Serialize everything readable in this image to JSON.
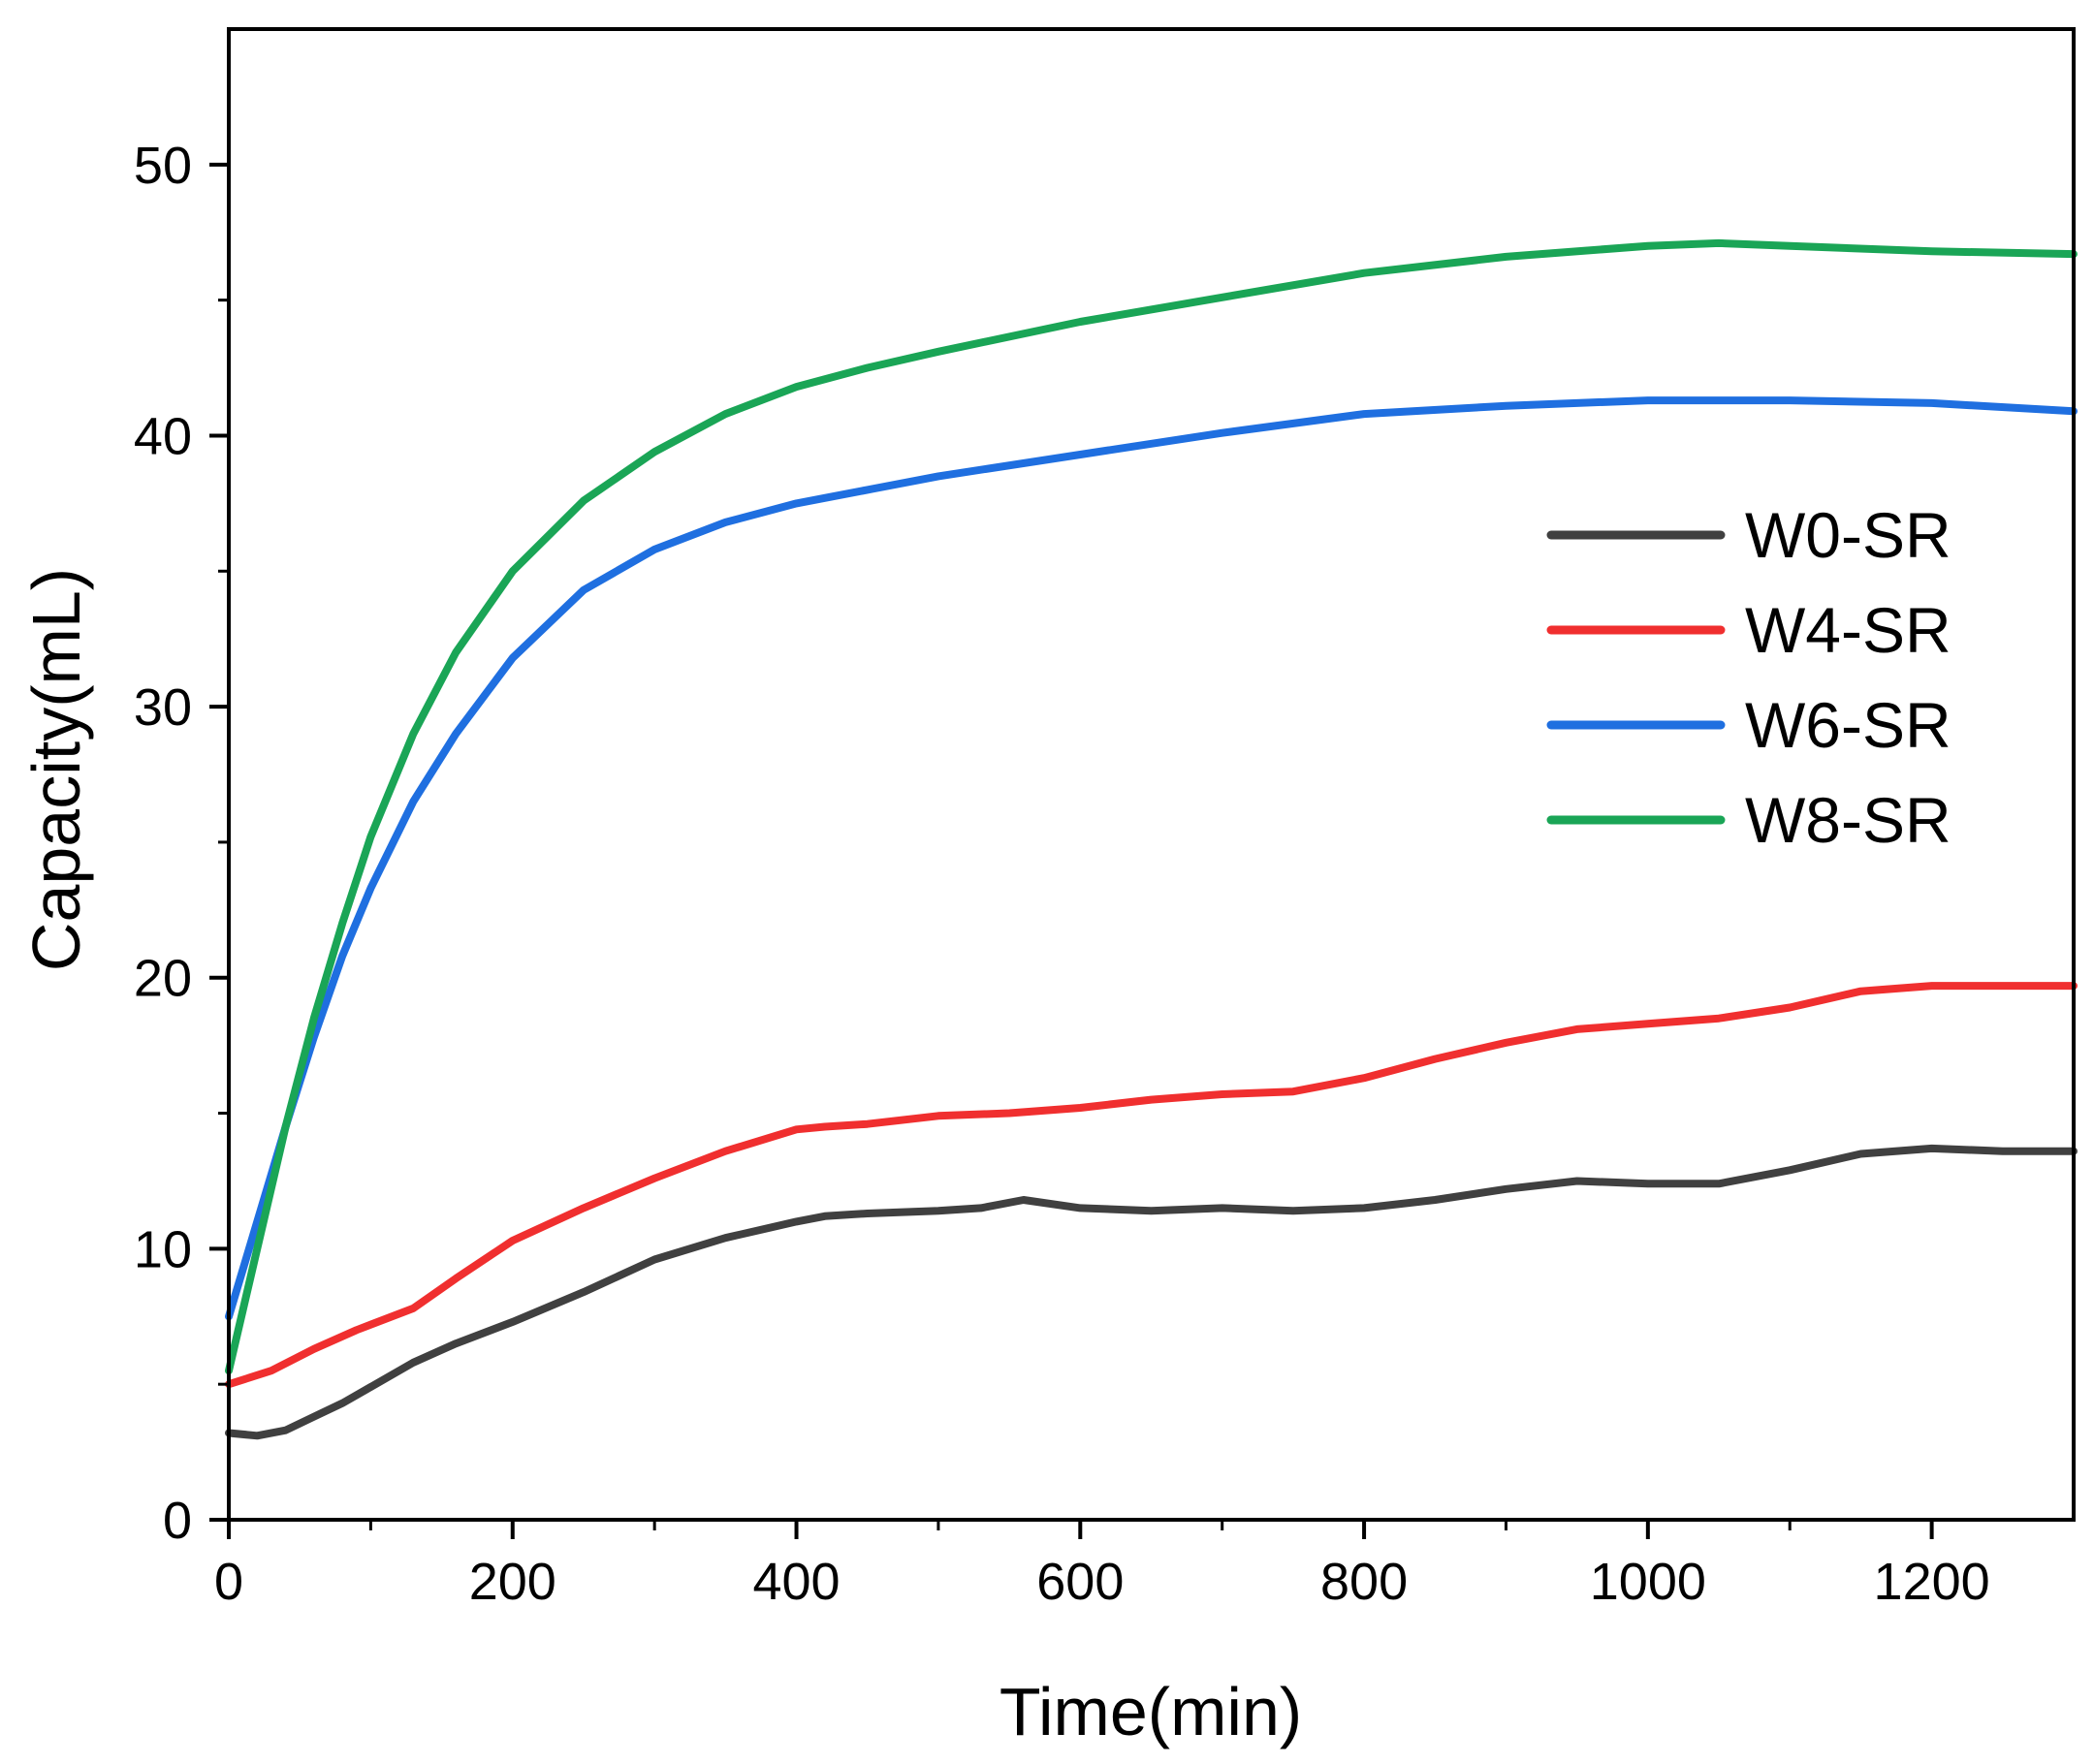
{
  "chart_data": {
    "type": "line",
    "title": "",
    "xlabel": "Time(min)",
    "ylabel": "Capacity(mL)",
    "xlim": [
      0,
      1300
    ],
    "ylim": [
      0,
      55
    ],
    "xticks": [
      0,
      200,
      400,
      600,
      800,
      1000,
      1200
    ],
    "yticks": [
      0,
      10,
      20,
      30,
      40,
      50
    ],
    "x_minor_step": 100,
    "y_minor_step": 5,
    "grid": false,
    "legend_position": "center-right",
    "series": [
      {
        "name": "W0-SR",
        "color": "#404040",
        "x": [
          0,
          20,
          40,
          60,
          80,
          100,
          130,
          160,
          200,
          250,
          300,
          350,
          400,
          420,
          450,
          500,
          530,
          560,
          600,
          650,
          700,
          750,
          800,
          850,
          900,
          950,
          1000,
          1050,
          1100,
          1150,
          1200,
          1250,
          1300
        ],
        "y": [
          3.2,
          3.1,
          3.3,
          3.8,
          4.3,
          4.9,
          5.8,
          6.5,
          7.3,
          8.4,
          9.6,
          10.4,
          11.0,
          11.2,
          11.3,
          11.4,
          11.5,
          11.8,
          11.5,
          11.4,
          11.5,
          11.4,
          11.5,
          11.8,
          12.2,
          12.5,
          12.4,
          12.4,
          12.9,
          13.5,
          13.7,
          13.6,
          13.6
        ]
      },
      {
        "name": "W4-SR",
        "color": "#f02f2f",
        "x": [
          0,
          30,
          60,
          90,
          130,
          160,
          200,
          250,
          300,
          350,
          400,
          420,
          450,
          500,
          550,
          600,
          650,
          700,
          750,
          800,
          850,
          900,
          950,
          1000,
          1050,
          1100,
          1150,
          1200,
          1250,
          1300
        ],
        "y": [
          5.0,
          5.5,
          6.3,
          7.0,
          7.8,
          8.9,
          10.3,
          11.5,
          12.6,
          13.6,
          14.4,
          14.5,
          14.6,
          14.9,
          15.0,
          15.2,
          15.5,
          15.7,
          15.8,
          16.3,
          17.0,
          17.6,
          18.1,
          18.3,
          18.5,
          18.9,
          19.5,
          19.7,
          19.7,
          19.7
        ]
      },
      {
        "name": "W6-SR",
        "color": "#1f6fe0",
        "x": [
          0,
          20,
          40,
          60,
          80,
          100,
          130,
          160,
          200,
          250,
          300,
          350,
          400,
          450,
          500,
          600,
          700,
          800,
          900,
          1000,
          1050,
          1100,
          1200,
          1300
        ],
        "y": [
          7.5,
          11.0,
          14.5,
          17.8,
          20.8,
          23.3,
          26.5,
          29.0,
          31.8,
          34.3,
          35.8,
          36.8,
          37.5,
          38.0,
          38.5,
          39.3,
          40.1,
          40.8,
          41.1,
          41.3,
          41.3,
          41.3,
          41.2,
          40.9
        ]
      },
      {
        "name": "W8-SR",
        "color": "#1aa556",
        "x": [
          0,
          20,
          40,
          60,
          80,
          100,
          130,
          160,
          200,
          250,
          300,
          350,
          400,
          450,
          500,
          600,
          700,
          800,
          900,
          1000,
          1050,
          1100,
          1200,
          1300
        ],
        "y": [
          5.5,
          10.0,
          14.5,
          18.5,
          22.0,
          25.2,
          29.0,
          32.0,
          35.0,
          37.6,
          39.4,
          40.8,
          41.8,
          42.5,
          43.1,
          44.2,
          45.1,
          46.0,
          46.6,
          47.0,
          47.1,
          47.0,
          46.8,
          46.7
        ]
      }
    ]
  }
}
